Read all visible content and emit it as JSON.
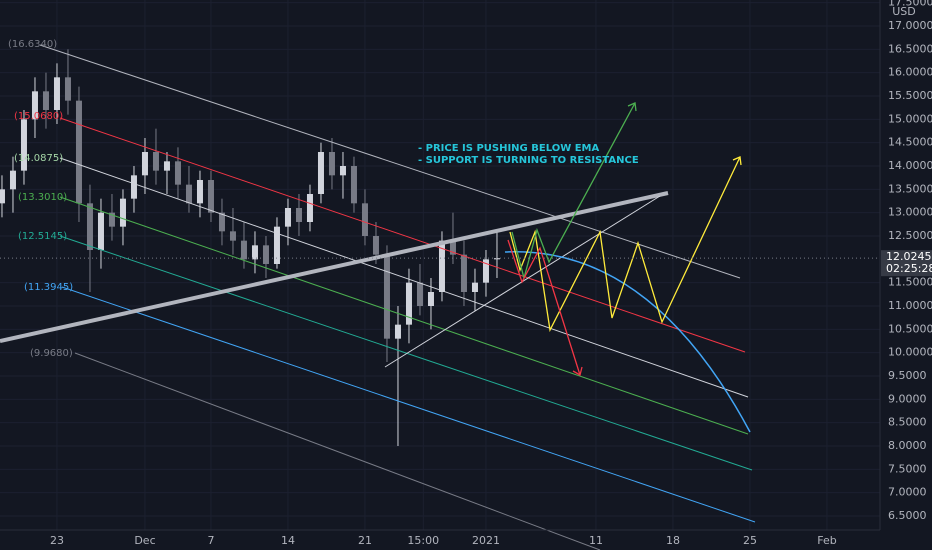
{
  "chart_data": {
    "type": "candlestick",
    "currency": "USD",
    "x": [
      -5,
      -4,
      -3,
      -2,
      -1,
      0,
      1,
      2,
      3,
      4,
      5,
      6,
      7,
      8,
      9,
      10,
      11,
      12,
      13,
      14,
      15,
      16,
      17,
      18,
      19,
      20,
      21,
      22,
      23,
      24,
      25,
      26,
      27,
      28,
      29,
      30,
      31,
      32,
      33,
      34,
      35,
      36,
      37,
      38,
      39,
      40
    ],
    "open": [
      13.2,
      13.5,
      13.9,
      15.0,
      15.6,
      15.2,
      15.9,
      15.4,
      13.2,
      12.2,
      13.0,
      12.7,
      13.3,
      13.8,
      14.3,
      13.9,
      14.1,
      13.6,
      13.2,
      13.7,
      13.0,
      12.6,
      12.4,
      12.0,
      12.3,
      11.9,
      12.7,
      13.1,
      12.8,
      13.4,
      14.3,
      13.8,
      14.0,
      13.2,
      12.5,
      12.1,
      10.3,
      10.6,
      11.5,
      11.0,
      11.3,
      12.4,
      12.1,
      11.3,
      11.5,
      12.0
    ],
    "high": [
      13.8,
      14.2,
      15.2,
      15.9,
      16.0,
      16.2,
      16.5,
      15.7,
      13.6,
      13.3,
      13.4,
      13.5,
      14.0,
      14.6,
      14.8,
      14.3,
      14.4,
      14.0,
      13.9,
      13.9,
      13.3,
      13.1,
      12.8,
      12.6,
      12.5,
      12.9,
      13.3,
      13.4,
      13.6,
      14.5,
      14.6,
      14.3,
      14.2,
      13.5,
      12.8,
      12.3,
      11.0,
      11.8,
      11.9,
      11.6,
      12.6,
      13.0,
      12.4,
      11.8,
      12.2,
      12.6
    ],
    "low": [
      12.9,
      13.0,
      13.6,
      14.6,
      14.8,
      14.9,
      15.1,
      12.8,
      11.3,
      11.8,
      12.4,
      12.3,
      13.0,
      13.4,
      13.6,
      13.4,
      13.3,
      13.0,
      12.9,
      12.8,
      12.3,
      12.1,
      11.8,
      11.7,
      11.6,
      11.8,
      12.3,
      12.5,
      12.6,
      13.2,
      13.5,
      13.3,
      13.0,
      12.3,
      11.9,
      9.8,
      8.0,
      10.2,
      10.8,
      10.5,
      11.1,
      11.9,
      11.0,
      10.9,
      11.2,
      11.6
    ],
    "close": [
      13.5,
      13.9,
      15.0,
      15.6,
      15.2,
      15.9,
      15.4,
      13.2,
      12.2,
      13.0,
      12.7,
      13.3,
      13.8,
      14.3,
      13.9,
      14.1,
      13.6,
      13.2,
      13.7,
      13.0,
      12.6,
      12.4,
      12.0,
      12.3,
      11.9,
      12.7,
      13.1,
      12.8,
      13.4,
      14.3,
      13.8,
      14.0,
      13.2,
      12.5,
      12.1,
      10.3,
      10.6,
      11.5,
      11.0,
      11.3,
      12.4,
      12.1,
      11.3,
      11.5,
      12.0,
      12.0245
    ],
    "up_color": "#d1d4dc",
    "down_color": "#787b86",
    "xlim": [
      -5.18,
      74.82
    ],
    "xticks": [
      {
        "value": 0,
        "label": "23"
      },
      {
        "value": 8,
        "label": "Dec"
      },
      {
        "value": 14,
        "label": "7"
      },
      {
        "value": 21,
        "label": "14"
      },
      {
        "value": 28,
        "label": "21"
      },
      {
        "value": 33.3,
        "label": "15:00"
      },
      {
        "value": 39,
        "label": "2021"
      },
      {
        "value": 49,
        "label": "11"
      },
      {
        "value": 56,
        "label": "18"
      },
      {
        "value": 63,
        "label": "25"
      },
      {
        "value": 70,
        "label": "Feb"
      }
    ],
    "ylim": [
      6.2,
      17.557
    ],
    "yticks": [
      {
        "value": 17.5,
        "label": "17.5000"
      },
      {
        "value": 17,
        "label": "17.0000"
      },
      {
        "value": 16.5,
        "label": "16.5000"
      },
      {
        "value": 16,
        "label": "16.0000"
      },
      {
        "value": 15.5,
        "label": "15.5000"
      },
      {
        "value": 15,
        "label": "15.0000"
      },
      {
        "value": 14.5,
        "label": "14.5000"
      },
      {
        "value": 14,
        "label": "14.0000"
      },
      {
        "value": 13.5,
        "label": "13.5000"
      },
      {
        "value": 13,
        "label": "13.0000"
      },
      {
        "value": 12.5,
        "label": "12.5000"
      },
      {
        "value": 11.5,
        "label": "11.5000"
      },
      {
        "value": 11,
        "label": "11.0000"
      },
      {
        "value": 10.5,
        "label": "10.5000"
      },
      {
        "value": 10,
        "label": "10.0000"
      },
      {
        "value": 9.5,
        "label": "9.5000"
      },
      {
        "value": 9,
        "label": "9.0000"
      },
      {
        "value": 8.5,
        "label": "8.5000"
      },
      {
        "value": 8,
        "label": "8.0000"
      },
      {
        "value": 7.5,
        "label": "7.5000"
      },
      {
        "value": 7,
        "label": "7.0000"
      },
      {
        "value": 6.5,
        "label": "6.5000"
      }
    ],
    "grid": true,
    "last_price": {
      "value": 12.0245,
      "label": "12.0245"
    },
    "countdown": "02:25:28",
    "level_labels": [
      "(16.6340)",
      "(15.0680)",
      "(14.0875)",
      "(13.3010)",
      "(12.5145)",
      "(11.3945)",
      "(9.9680)"
    ],
    "annotations": [
      "- PRICE IS PUSHING BELOW EMA",
      "- SUPPORT IS TURNING TO RESISTANCE"
    ]
  }
}
